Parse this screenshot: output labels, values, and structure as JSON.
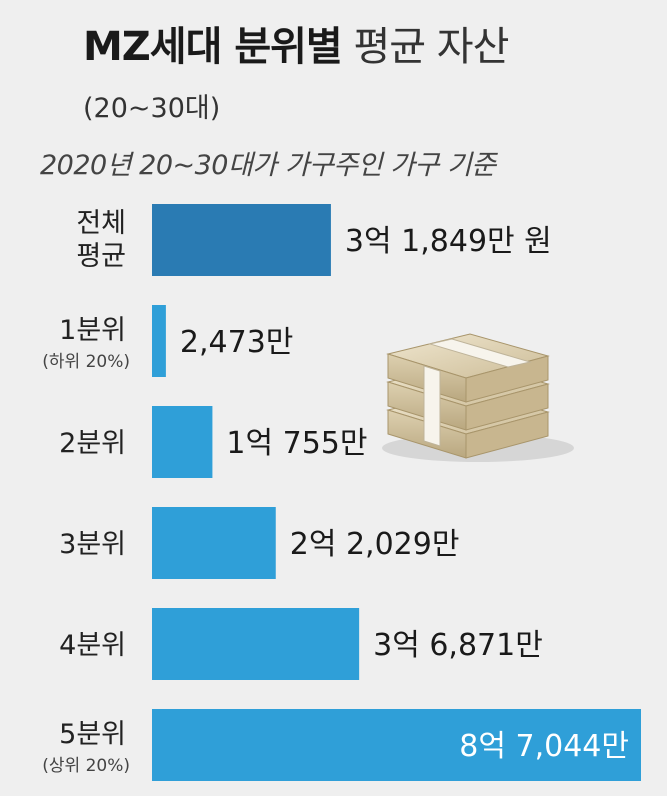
{
  "header": {
    "title_bold": "MZ세대 분위별",
    "title_light": "평균 자산",
    "subtitle": "(20~30대)",
    "note": "2020년 20~30대가 가구주인 가구 기준"
  },
  "colors": {
    "bar_dark": "#2a7bb3",
    "bar_light": "#2f9fd8",
    "background": "#efefef"
  },
  "icons": [
    "money-stack-icon"
  ],
  "chart_data": {
    "type": "bar",
    "orientation": "horizontal",
    "unit": "만 원",
    "categories": [
      {
        "label": [
          "전체",
          "평균"
        ],
        "sub": ""
      },
      {
        "label": [
          "1분위"
        ],
        "sub": "(하위 20%)"
      },
      {
        "label": [
          "2분위"
        ],
        "sub": ""
      },
      {
        "label": [
          "3분위"
        ],
        "sub": ""
      },
      {
        "label": [
          "4분위"
        ],
        "sub": ""
      },
      {
        "label": [
          "5분위"
        ],
        "sub": "(상위 20%)"
      }
    ],
    "values": [
      31849,
      2473,
      10755,
      22029,
      36871,
      87044
    ],
    "value_labels": [
      "3억 1,849만 원",
      "2,473만",
      "1억 755만",
      "2억 2,029만",
      "3억 6,871만",
      "8억 7,044만"
    ],
    "xlim": [
      0,
      87044
    ],
    "grid": false,
    "legend": "none"
  }
}
